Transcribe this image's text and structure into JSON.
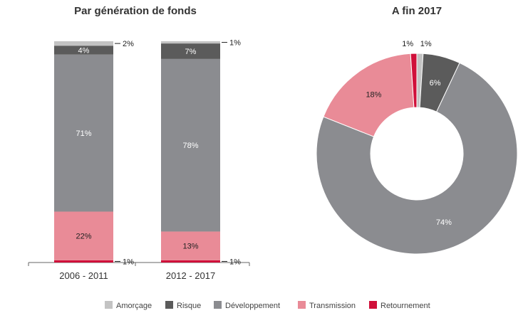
{
  "chart_data": [
    {
      "type": "bar",
      "stacked": true,
      "title": "Par génération de fonds",
      "categories": [
        "2006 - 2011",
        "2012 - 2017"
      ],
      "series": [
        {
          "name": "Retournement",
          "values": [
            1,
            1
          ]
        },
        {
          "name": "Transmission",
          "values": [
            22,
            13
          ]
        },
        {
          "name": "Développement",
          "values": [
            71,
            78
          ]
        },
        {
          "name": "Risque",
          "values": [
            4,
            7
          ]
        },
        {
          "name": "Amorçage",
          "values": [
            2,
            1
          ]
        }
      ],
      "ylim": [
        0,
        100
      ]
    },
    {
      "type": "pie",
      "donut": true,
      "title": "A fin 2017",
      "slices": [
        {
          "name": "Amorçage",
          "value": 1
        },
        {
          "name": "Risque",
          "value": 6
        },
        {
          "name": "Développement",
          "value": 74
        },
        {
          "name": "Transmission",
          "value": 18
        },
        {
          "name": "Retournement",
          "value": 1
        }
      ]
    }
  ],
  "legend": [
    "Amorçage",
    "Risque",
    "Développement",
    "Transmission",
    "Retournement"
  ],
  "colors": {
    "Amorçage": "#c3c3c3",
    "Risque": "#5b5b5b",
    "Développement": "#8b8c90",
    "Transmission": "#e98b97",
    "Retournement": "#d0103a"
  }
}
